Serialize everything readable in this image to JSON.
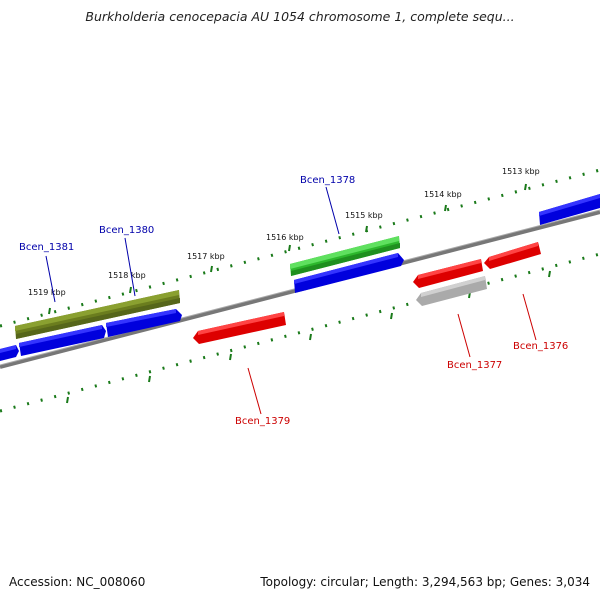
{
  "title": "Burkholderia cenocepacia AU 1054 chromosome 1, complete sequ...",
  "ruler": [
    "1513 kbp",
    "1514 kbp",
    "1515 kbp",
    "1516 kbp",
    "1517 kbp",
    "1518 kbp",
    "1519 kbp"
  ],
  "genes": {
    "bcen1376": "Bcen_1376",
    "bcen1377": "Bcen_1377",
    "bcen1378": "Bcen_1378",
    "bcen1379": "Bcen_1379",
    "bcen1380": "Bcen_1380",
    "bcen1381": "Bcen_1381"
  },
  "colors": {
    "forward_label": "#0000aa",
    "reverse_label": "#cc0000",
    "tick": "#1a7a1a",
    "backbone": "#777777"
  },
  "footer": {
    "accession": "Accession: NC_008060",
    "stats": "Topology: circular; Length: 3,294,563 bp; Genes: 3,034"
  }
}
